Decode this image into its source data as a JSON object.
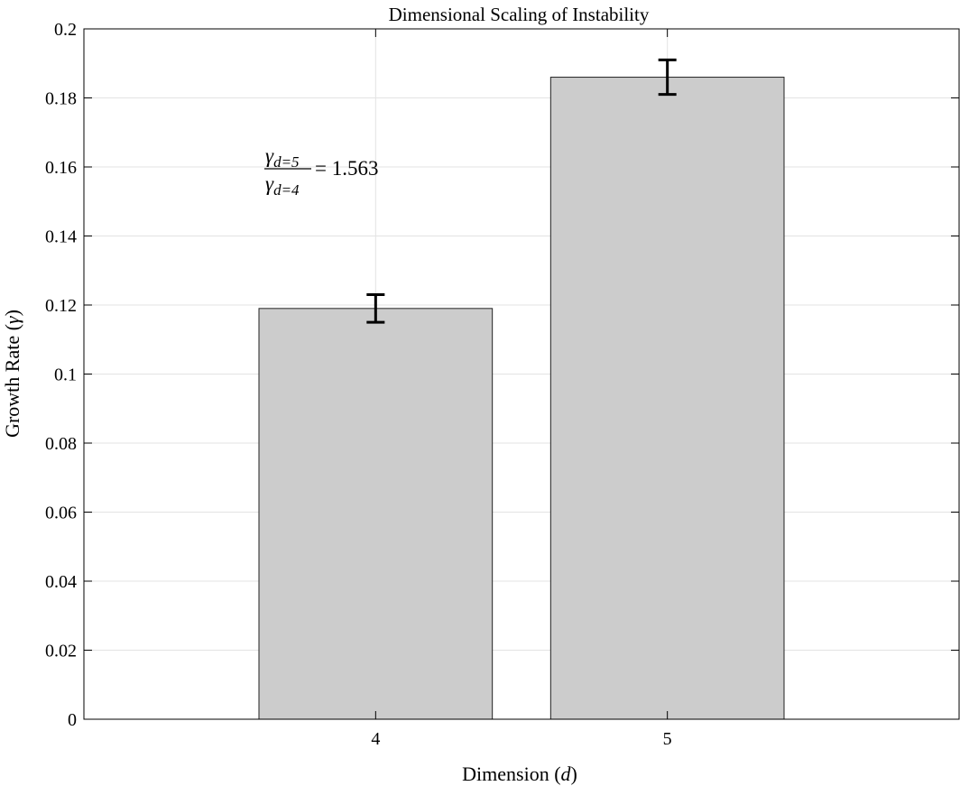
{
  "chart_data": {
    "type": "bar",
    "title": "Dimensional Scaling of Instability",
    "xlabel": "Dimension (",
    "xlabel_var": "d",
    "xlabel_close": ")",
    "ylabel": "Growth Rate (",
    "ylabel_var": "γ",
    "ylabel_close": ")",
    "categories": [
      "4",
      "5"
    ],
    "values": [
      0.119,
      0.186
    ],
    "errors": [
      0.004,
      0.005
    ],
    "ylim": [
      0,
      0.2
    ],
    "yticks": [
      "0",
      "0.02",
      "0.04",
      "0.06",
      "0.08",
      "0.1",
      "0.12",
      "0.14",
      "0.16",
      "0.18",
      "0.2"
    ],
    "grid": true,
    "bar_color": "#cccccc",
    "annotation": {
      "num_symbol": "γ",
      "num_sub": "d=5",
      "den_symbol": "γ",
      "den_sub": "d=4",
      "rhs": "= 1.563"
    }
  }
}
